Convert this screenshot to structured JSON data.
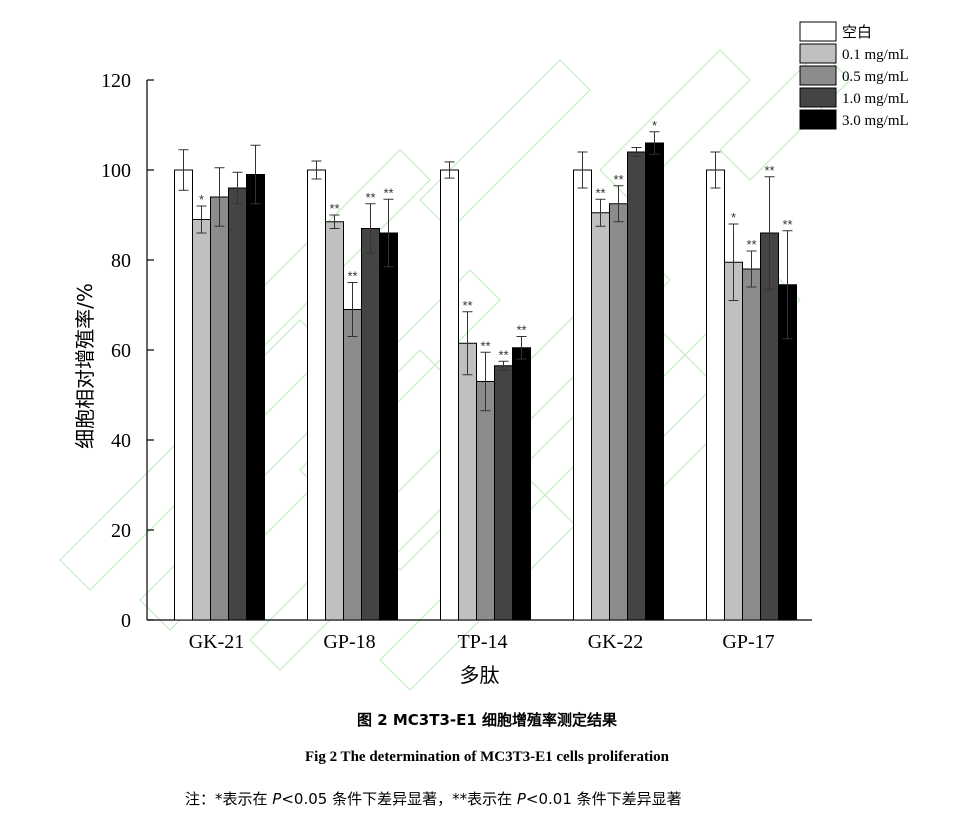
{
  "chart_data": {
    "type": "bar",
    "title": "",
    "xlabel": "多肽",
    "ylabel": "细胞相对增殖率/%",
    "ylim": [
      0,
      120
    ],
    "yticks": [
      "0",
      "20",
      "40",
      "60",
      "80",
      "100",
      "120"
    ],
    "categories": [
      "GK-21",
      "GP-18",
      "TP-14",
      "GK-22",
      "GP-17"
    ],
    "legend_position": "top-right",
    "series": [
      {
        "name": "空白",
        "color": "#ffffff",
        "values": [
          100,
          100,
          100,
          100,
          100
        ],
        "errors": [
          4.5,
          2.0,
          1.8,
          4.0,
          4.0
        ],
        "marks": [
          "",
          "",
          "",
          "",
          ""
        ]
      },
      {
        "name": "0.1 mg/mL",
        "color": "#c0c0c0",
        "values": [
          89,
          88.5,
          61.5,
          90.5,
          79.5
        ],
        "errors": [
          3.0,
          1.5,
          7.0,
          3.0,
          8.5
        ],
        "marks": [
          "*",
          "**",
          "**",
          "**",
          "*"
        ]
      },
      {
        "name": "0.5 mg/mL",
        "color": "#8c8c8c",
        "values": [
          94,
          69,
          53,
          92.5,
          78
        ],
        "errors": [
          6.5,
          6.0,
          6.5,
          4.0,
          4.0
        ],
        "marks": [
          "",
          "**",
          "**",
          "**",
          "**"
        ]
      },
      {
        "name": "1.0 mg/mL",
        "color": "#444444",
        "values": [
          96,
          87,
          56.5,
          104,
          86
        ],
        "errors": [
          3.5,
          5.5,
          1.0,
          1.0,
          12.5
        ],
        "marks": [
          "",
          "**",
          "**",
          "",
          "**"
        ]
      },
      {
        "name": "3.0 mg/mL",
        "color": "#000000",
        "values": [
          99,
          86,
          60.5,
          106,
          74.5
        ],
        "errors": [
          6.5,
          7.5,
          2.5,
          2.5,
          12.0
        ],
        "marks": [
          "",
          "**",
          "**",
          "*",
          "**"
        ]
      }
    ]
  },
  "captions": {
    "cn": "图 2 MC3T3-E1 细胞增殖率测定结果",
    "en": "Fig 2 The determination of MC3T3-E1 cells proliferation",
    "note_prefix": "注：*表示在 ",
    "note_p1": "P",
    "note_mid": "<0.05 条件下差异显著，**表示在 ",
    "note_p2": "P",
    "note_suffix": "<0.01 条件下差异显著"
  }
}
